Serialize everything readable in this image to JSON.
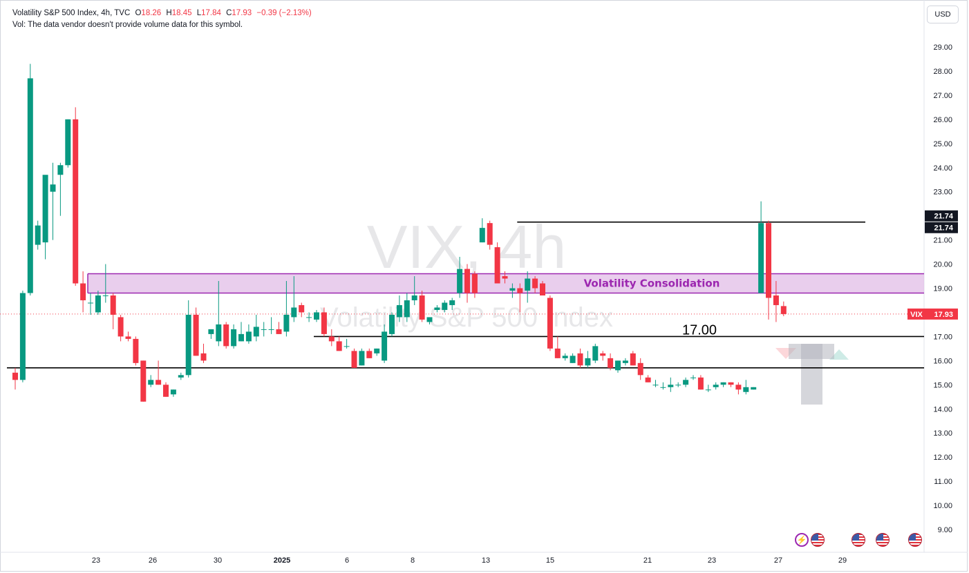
{
  "legend": {
    "symbol_line": "Volatility S&P 500 Index, 4h, TVC",
    "open_label": "O",
    "open": "18.26",
    "high_label": "H",
    "high": "18.45",
    "low_label": "L",
    "low": "17.84",
    "close_label": "C",
    "close": "17.93",
    "change": "−0.39 (−2.13%)",
    "vol_line": "Vol: The data vendor doesn't provide volume data for this symbol."
  },
  "currency_button": "USD",
  "watermark": {
    "line1": "VIX, 4h",
    "line2": "Volatility S&P 500 Index"
  },
  "colors": {
    "up": "#089981",
    "down": "#f23645",
    "zone_fill": "#e1bee7",
    "zone_border": "#9c27b0",
    "annotation": "#9c27b0"
  },
  "icons": [
    "lightning-icon",
    "us-flag-icon",
    "us-flag-icon",
    "us-flag-icon",
    "us-flag-icon"
  ],
  "chart_data": {
    "type": "candlestick",
    "interval": "4h",
    "y_axis": {
      "min": 9,
      "max": 30,
      "ticks": [
        "9.00",
        "10.00",
        "11.00",
        "12.00",
        "13.00",
        "14.00",
        "15.00",
        "16.00",
        "17.00",
        "18.00",
        "19.00",
        "20.00",
        "21.00",
        "22.00",
        "23.00",
        "24.00",
        "25.00",
        "26.00",
        "27.00",
        "28.00",
        "29.00"
      ]
    },
    "x_axis": {
      "ticks": [
        "23",
        "26",
        "30",
        "2025",
        "6",
        "8",
        "13",
        "15",
        "21",
        "23",
        "27",
        "29"
      ]
    },
    "price_tags": [
      {
        "label": "",
        "value": "21.74",
        "bg": "#131722"
      },
      {
        "label": "",
        "value": "21.74",
        "bg": "#131722"
      },
      {
        "label": "VIX",
        "value": "17.93",
        "bg": "#f23645"
      }
    ],
    "horizontal_lines": [
      {
        "price": 21.74,
        "from_bar": 67,
        "to": "1252"
      },
      {
        "price": 17.0,
        "from_bar": 40,
        "to": "end",
        "label": "17.00"
      },
      {
        "price": 15.7,
        "from_bar": 0,
        "to": "end"
      }
    ],
    "zone": {
      "low": 18.8,
      "high": 19.6,
      "from_bar": 10,
      "label": "Volatility Consolidation"
    },
    "last_price": 17.93,
    "candles": [
      [
        15.5,
        15.7,
        14.8,
        15.2
      ],
      [
        15.2,
        18.9,
        15.1,
        18.8
      ],
      [
        18.8,
        28.3,
        18.7,
        27.7
      ],
      [
        20.8,
        21.8,
        20.6,
        21.6
      ],
      [
        20.9,
        23.6,
        20.2,
        23.7
      ],
      [
        23.0,
        24.2,
        21.0,
        23.3
      ],
      [
        23.7,
        24.2,
        22.0,
        24.1
      ],
      [
        24.1,
        26.0,
        24.0,
        26.0
      ],
      [
        26.0,
        26.5,
        19.1,
        19.2
      ],
      [
        19.2,
        19.7,
        18.0,
        18.5
      ],
      [
        18.4,
        18.8,
        17.9,
        18.4
      ],
      [
        18.0,
        18.9,
        17.9,
        18.7
      ],
      [
        18.7,
        20.0,
        18.4,
        18.7
      ],
      [
        18.7,
        18.8,
        17.3,
        17.9
      ],
      [
        17.8,
        17.9,
        16.8,
        17.0
      ],
      [
        17.0,
        17.2,
        16.8,
        16.9
      ],
      [
        16.9,
        17.0,
        15.8,
        15.9
      ],
      [
        16.0,
        16.0,
        14.3,
        14.3
      ],
      [
        15.0,
        15.4,
        14.9,
        15.2
      ],
      [
        15.2,
        16.0,
        15.0,
        15.0
      ],
      [
        15.0,
        15.1,
        14.5,
        14.5
      ],
      [
        14.6,
        14.8,
        14.5,
        14.8
      ],
      [
        15.3,
        15.5,
        15.2,
        15.4
      ],
      [
        15.4,
        18.5,
        15.3,
        17.9
      ],
      [
        17.9,
        18.2,
        16.2,
        16.2
      ],
      [
        16.3,
        16.7,
        15.9,
        16.0
      ],
      [
        17.1,
        17.3,
        16.9,
        17.3
      ],
      [
        16.8,
        19.3,
        16.6,
        17.5
      ],
      [
        17.5,
        17.6,
        16.5,
        16.6
      ],
      [
        16.6,
        17.5,
        16.5,
        17.3
      ],
      [
        16.8,
        17.6,
        16.8,
        17.1
      ],
      [
        16.8,
        17.5,
        16.7,
        17.2
      ],
      [
        17.0,
        17.9,
        16.8,
        17.4
      ],
      [
        17.3,
        17.6,
        17.0,
        17.3
      ],
      [
        17.3,
        17.8,
        17.1,
        17.3
      ],
      [
        17.3,
        17.6,
        17.1,
        17.1
      ],
      [
        17.2,
        19.3,
        17.0,
        17.9
      ],
      [
        17.8,
        19.5,
        17.6,
        18.2
      ],
      [
        18.3,
        18.4,
        17.8,
        18.0
      ],
      [
        17.8,
        18.0,
        17.6,
        17.8
      ],
      [
        17.7,
        18.1,
        17.6,
        18.0
      ],
      [
        18.0,
        18.2,
        17.0,
        17.1
      ],
      [
        17.0,
        17.3,
        16.6,
        16.8
      ],
      [
        16.8,
        17.0,
        16.4,
        16.4
      ],
      [
        16.6,
        16.9,
        16.5,
        16.6
      ],
      [
        16.4,
        16.5,
        15.7,
        15.7
      ],
      [
        15.8,
        16.5,
        15.8,
        16.4
      ],
      [
        16.4,
        16.5,
        16.1,
        16.1
      ],
      [
        16.3,
        16.5,
        16.2,
        16.5
      ],
      [
        16.0,
        17.5,
        15.9,
        17.2
      ],
      [
        17.1,
        18.0,
        17.0,
        17.9
      ],
      [
        17.8,
        18.7,
        17.6,
        18.3
      ],
      [
        17.8,
        18.8,
        17.6,
        18.5
      ],
      [
        18.5,
        19.5,
        18.3,
        18.7
      ],
      [
        18.7,
        18.9,
        17.6,
        17.7
      ],
      [
        17.6,
        17.8,
        17.5,
        17.8
      ],
      [
        18.1,
        18.3,
        18.0,
        18.2
      ],
      [
        18.1,
        18.5,
        18.0,
        18.4
      ],
      [
        18.3,
        18.6,
        18.1,
        18.5
      ],
      [
        18.8,
        20.3,
        18.6,
        19.8
      ],
      [
        19.8,
        20.0,
        18.4,
        18.8
      ],
      [
        19.6,
        19.7,
        18.6,
        18.8
      ],
      [
        20.9,
        21.9,
        20.9,
        21.5
      ],
      [
        21.7,
        21.8,
        20.6,
        20.8
      ],
      [
        20.7,
        20.9,
        19.2,
        19.2
      ],
      [
        19.5,
        19.7,
        19.2,
        19.4
      ],
      [
        18.9,
        19.2,
        18.6,
        19.0
      ],
      [
        19.0,
        19.2,
        18.0,
        18.8
      ],
      [
        18.9,
        19.7,
        18.4,
        19.4
      ],
      [
        19.4,
        19.5,
        18.8,
        19.0
      ],
      [
        19.2,
        19.3,
        18.8,
        18.7
      ],
      [
        18.6,
        18.7,
        16.4,
        16.5
      ],
      [
        16.5,
        17.0,
        16.1,
        16.1
      ],
      [
        16.1,
        16.3,
        16.0,
        16.2
      ],
      [
        15.9,
        16.3,
        15.9,
        16.2
      ],
      [
        16.3,
        16.5,
        15.7,
        15.8
      ],
      [
        15.8,
        16.4,
        15.7,
        16.1
      ],
      [
        16.0,
        16.7,
        15.9,
        16.6
      ],
      [
        16.3,
        16.4,
        16.0,
        16.2
      ],
      [
        16.1,
        16.3,
        15.6,
        15.7
      ],
      [
        15.6,
        16.0,
        15.5,
        16.0
      ],
      [
        15.9,
        16.1,
        15.8,
        16.0
      ],
      [
        16.3,
        16.4,
        15.8,
        15.8
      ],
      [
        15.9,
        16.1,
        15.2,
        15.4
      ],
      [
        15.3,
        15.4,
        15.1,
        15.1
      ],
      [
        15.0,
        15.2,
        14.9,
        15.0
      ],
      [
        14.9,
        15.1,
        14.8,
        14.9
      ],
      [
        14.9,
        15.3,
        14.7,
        15.0
      ],
      [
        15.0,
        15.1,
        14.9,
        15.0
      ],
      [
        15.0,
        15.3,
        14.9,
        15.2
      ],
      [
        15.3,
        15.4,
        15.2,
        15.3
      ],
      [
        15.3,
        15.4,
        14.8,
        14.8
      ],
      [
        14.8,
        15.0,
        14.7,
        14.8
      ],
      [
        14.9,
        15.1,
        14.8,
        15.0
      ],
      [
        15.0,
        15.1,
        14.9,
        15.1
      ],
      [
        15.1,
        15.1,
        14.9,
        15.0
      ],
      [
        15.0,
        15.1,
        14.6,
        14.8
      ],
      [
        14.7,
        15.2,
        14.6,
        14.9
      ],
      [
        14.8,
        14.9,
        14.8,
        14.9
      ],
      [
        18.8,
        22.6,
        18.8,
        21.7
      ],
      [
        21.7,
        21.8,
        17.7,
        18.6
      ],
      [
        18.7,
        19.3,
        17.6,
        18.3
      ],
      [
        18.26,
        18.45,
        17.84,
        17.93
      ]
    ]
  }
}
